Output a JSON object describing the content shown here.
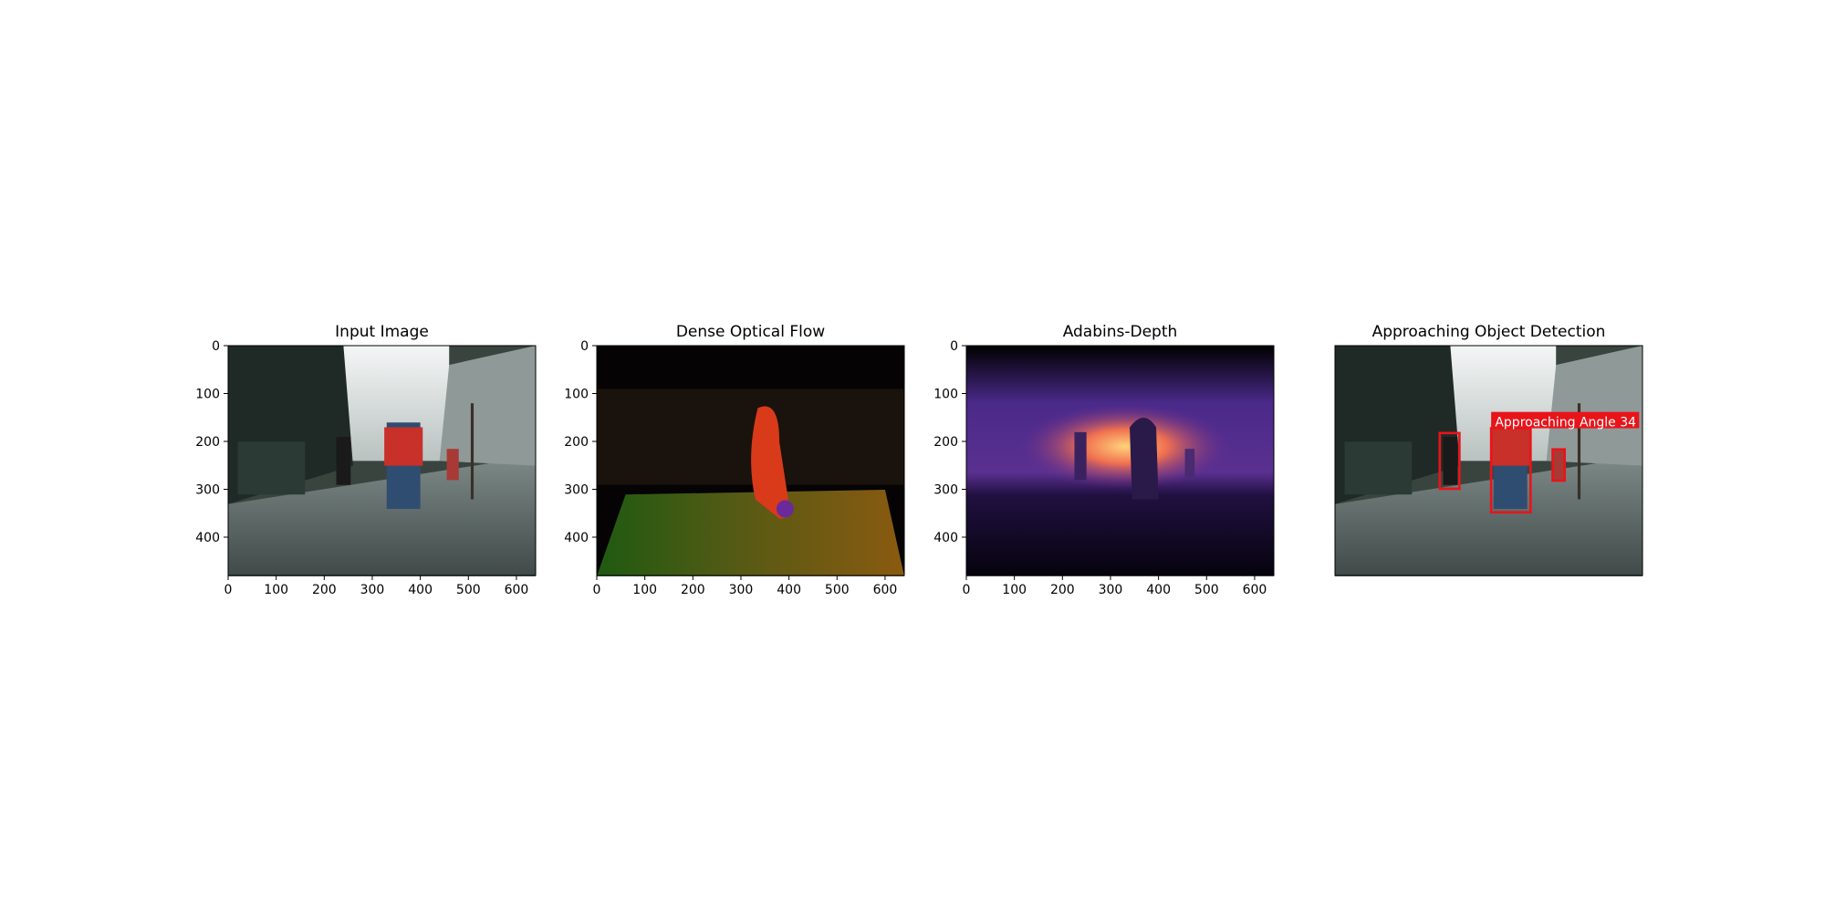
{
  "chart_data": [
    {
      "type": "image",
      "title": "Input Image",
      "scene": "street",
      "xlim": [
        0,
        640
      ],
      "ylim": [
        480,
        0
      ],
      "xticks": [
        0,
        100,
        200,
        300,
        400,
        500,
        600
      ],
      "yticks": [
        0,
        100,
        200,
        300,
        400
      ]
    },
    {
      "type": "image",
      "title": "Dense Optical Flow",
      "scene": "flow",
      "xlim": [
        0,
        640
      ],
      "ylim": [
        480,
        0
      ],
      "xticks": [
        0,
        100,
        200,
        300,
        400,
        500,
        600
      ],
      "yticks": [
        0,
        100,
        200,
        300,
        400
      ]
    },
    {
      "type": "image",
      "title": "Adabins-Depth",
      "scene": "depth",
      "xlim": [
        0,
        640
      ],
      "ylim": [
        480,
        0
      ],
      "xticks": [
        0,
        100,
        200,
        300,
        400,
        500,
        600
      ],
      "yticks": [
        0,
        100,
        200,
        300,
        400
      ]
    },
    {
      "type": "image",
      "title": "Approaching Object Detection",
      "scene": "detect",
      "annotation": "Approaching Angle 34"
    }
  ]
}
